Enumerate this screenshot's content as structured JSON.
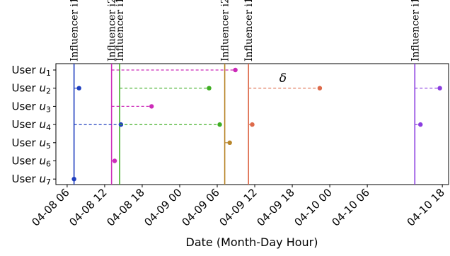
{
  "chart_data": {
    "type": "scatter",
    "xlabel": "Date (Month-Day Hour)",
    "x_ticks": [
      "04-08 06",
      "04-08 12",
      "04-08 18",
      "04-09 00",
      "04-09 06",
      "04-09 12",
      "04-09 18",
      "04-10 00",
      "04-10 06",
      "04-10 18"
    ],
    "x_tick_hours": [
      6,
      12,
      18,
      24,
      30,
      36,
      42,
      48,
      54,
      66
    ],
    "xlim_hours": [
      4.2,
      67.0
    ],
    "users": [
      {
        "label": "User ",
        "sub": "u",
        "idx": "1"
      },
      {
        "label": "User ",
        "sub": "u",
        "idx": "2"
      },
      {
        "label": "User ",
        "sub": "u",
        "idx": "3"
      },
      {
        "label": "User ",
        "sub": "u",
        "idx": "4"
      },
      {
        "label": "User ",
        "sub": "u",
        "idx": "5"
      },
      {
        "label": "User ",
        "sub": "u",
        "idx": "6"
      },
      {
        "label": "User ",
        "sub": "u",
        "idx": "7"
      }
    ],
    "influencers": [
      {
        "label": "Influencer i1",
        "hour": 7.1,
        "color": "#1f3fbf"
      },
      {
        "label": "Influencer i2",
        "hour": 13.1,
        "color": "#cc2bb8"
      },
      {
        "label": "Influencer i1",
        "hour": 14.4,
        "color": "#3fae22"
      },
      {
        "label": "Influencer i2",
        "hour": 31.2,
        "color": "#b8862a"
      },
      {
        "label": "Influencer i1",
        "hour": 35.0,
        "color": "#dd6a4a"
      },
      {
        "label": "Influencer i1",
        "hour": 61.6,
        "color": "#8a3de0"
      }
    ],
    "adoptions": [
      {
        "user": 1,
        "from_hour": 13.1,
        "to_hour": 32.9,
        "color": "#cc2bb8"
      },
      {
        "user": 2,
        "from_hour": 14.4,
        "to_hour": 28.7,
        "color": "#3fae22"
      },
      {
        "user": 2,
        "from_hour": 35.0,
        "to_hour": 46.4,
        "color": "#dd6a4a"
      },
      {
        "user": 2,
        "from_hour": 61.6,
        "to_hour": 65.6,
        "color": "#8a3de0"
      },
      {
        "user": 2,
        "from_hour": 7.1,
        "to_hour": 7.9,
        "color": "#1f3fbf"
      },
      {
        "user": 3,
        "from_hour": 13.1,
        "to_hour": 19.5,
        "color": "#cc2bb8"
      },
      {
        "user": 4,
        "from_hour": 7.1,
        "to_hour": 14.6,
        "color": "#1f3fbf"
      },
      {
        "user": 4,
        "from_hour": 14.4,
        "to_hour": 30.4,
        "color": "#3fae22"
      },
      {
        "user": 4,
        "from_hour": 35.0,
        "to_hour": 35.6,
        "color": "#dd6a4a"
      },
      {
        "user": 4,
        "from_hour": 61.6,
        "to_hour": 62.5,
        "color": "#8a3de0"
      },
      {
        "user": 5,
        "from_hour": 31.2,
        "to_hour": 32.0,
        "color": "#b8862a"
      },
      {
        "user": 6,
        "from_hour": 13.1,
        "to_hour": 13.6,
        "color": "#cc2bb8"
      },
      {
        "user": 7,
        "from_hour": 7.1,
        "to_hour": 7.1,
        "color": "#1f3fbf"
      }
    ],
    "annotation": "δ",
    "annotation_hour": 40.5,
    "annotation_user": 1.5,
    "grid": false
  }
}
